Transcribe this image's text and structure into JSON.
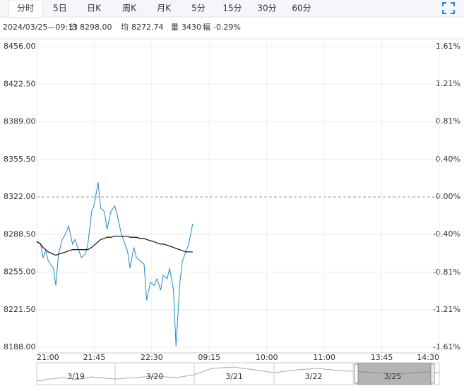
{
  "tabs": [
    "分时",
    "5日",
    "日K",
    "周K",
    "月K",
    "5分",
    "15分",
    "30分",
    "60分"
  ],
  "info": {
    "datetime": "2024/03/25—09:13",
    "items": [
      {
        "label": "价",
        "value": "8298.00"
      },
      {
        "label": "均",
        "value": "8272.74"
      },
      {
        "label": "量",
        "value": "3430"
      },
      {
        "label": "幅",
        "value": "-0.29%"
      }
    ]
  },
  "chart_data": {
    "type": "line",
    "x": [
      0,
      3,
      5,
      7,
      9,
      13,
      15,
      17,
      20,
      23,
      25,
      28,
      30,
      33,
      35,
      38,
      40,
      43,
      45,
      48,
      50,
      53,
      55,
      58,
      61,
      63,
      66,
      69,
      71,
      73,
      76,
      78,
      81,
      84,
      86,
      89,
      92,
      94,
      97,
      99,
      102,
      104,
      107,
      109,
      112,
      114,
      117,
      119,
      122
    ],
    "xlim": [
      0,
      315
    ],
    "xticks": [
      {
        "value": 0,
        "label": "21:00"
      },
      {
        "value": 45,
        "label": "21:45"
      },
      {
        "value": 90,
        "label": "22:30"
      },
      {
        "value": 135,
        "label": "09:15"
      },
      {
        "value": 180,
        "label": "10:00"
      },
      {
        "value": 225,
        "label": "11:00"
      },
      {
        "value": 270,
        "label": "13:45"
      },
      {
        "value": 315,
        "label": "14:30"
      }
    ],
    "ylim": [
      8188,
      8456
    ],
    "yticks": [
      {
        "value": 8456,
        "label": "8456.00"
      },
      {
        "value": 8422.5,
        "label": "8422.50"
      },
      {
        "value": 8389,
        "label": "8389.00"
      },
      {
        "value": 8355.5,
        "label": "8355.50"
      },
      {
        "value": 8322,
        "label": "8322.00"
      },
      {
        "value": 8288.5,
        "label": "8288.50"
      },
      {
        "value": 8255,
        "label": "8255.00"
      },
      {
        "value": 8221.5,
        "label": "8221.50"
      },
      {
        "value": 8188,
        "label": "8188.00"
      }
    ],
    "y2lim": [
      -1.61,
      1.61
    ],
    "y2ticks": [
      {
        "value": 1.61,
        "label": "1.61%"
      },
      {
        "value": 1.21,
        "label": "1.21%"
      },
      {
        "value": 0.81,
        "label": "0.81%"
      },
      {
        "value": 0.4,
        "label": "0.40%"
      },
      {
        "value": 0,
        "label": "0.00%"
      },
      {
        "value": -0.4,
        "label": "-0.40%"
      },
      {
        "value": -0.81,
        "label": "-0.81%"
      },
      {
        "value": -1.21,
        "label": "-1.21%"
      },
      {
        "value": -1.61,
        "label": "-1.61%"
      }
    ],
    "baseline": 8322,
    "grid": true,
    "up_color": "#e0302b",
    "down_color": "#1a9a1a",
    "series": [
      {
        "color": "#1f8ac8",
        "values": [
          8282.5,
          8280.5,
          8268,
          8274,
          8265,
          8258.5,
          8243,
          8271,
          8284,
          8290,
          8296,
          8280,
          8284,
          8274,
          8268,
          8271,
          8280,
          8309,
          8315,
          8335,
          8312,
          8309,
          8293,
          8309,
          8314,
          8306,
          8290,
          8280,
          8274,
          8258.5,
          8277,
          8268,
          8265,
          8262,
          8230,
          8246,
          8243,
          8249,
          8239,
          8252,
          8249,
          8258.5,
          8239,
          8189,
          8246,
          8265,
          8274,
          8280,
          8298
        ]
      },
      {
        "color": "#222222",
        "values": [
          8282,
          8280,
          8277,
          8275,
          8273,
          8271,
          8270,
          8271,
          8272,
          8273,
          8274,
          8275,
          8275,
          8275,
          8275,
          8275,
          8275,
          8277,
          8279,
          8282,
          8284,
          8285,
          8286,
          8286,
          8287,
          8287,
          8287,
          8287,
          8287,
          8286,
          8286,
          8286,
          8285,
          8285,
          8284,
          8283,
          8282,
          8281,
          8280,
          8280,
          8279,
          8278,
          8277,
          8276,
          8275,
          8274,
          8273,
          8273,
          8273
        ]
      }
    ]
  },
  "navigator": {
    "dates": [
      "3/19",
      "3/20",
      "3/21",
      "3/22",
      "3/25"
    ]
  }
}
